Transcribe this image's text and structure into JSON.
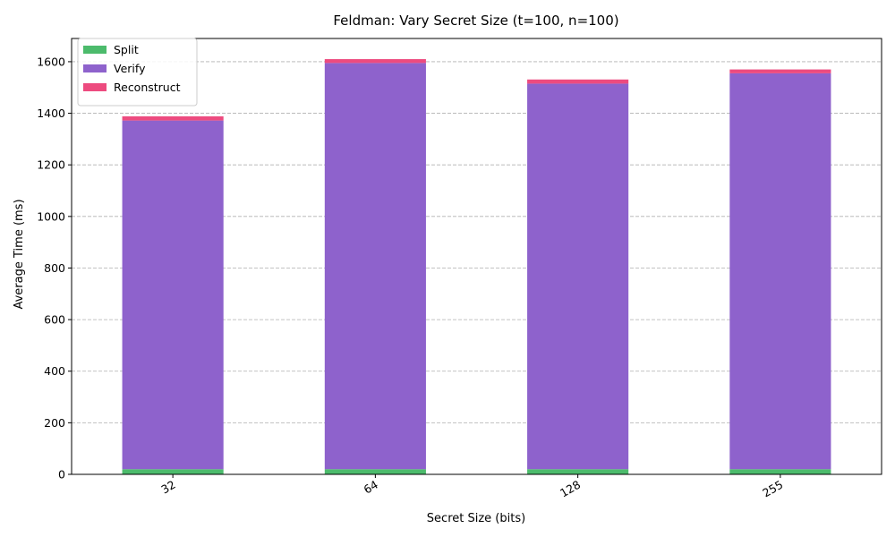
{
  "chart_data": {
    "type": "bar",
    "stacked": true,
    "title": "Feldman: Vary Secret Size (t=100, n=100)",
    "xlabel": "Secret Size (bits)",
    "ylabel": "Average Time (ms)",
    "categories": [
      "32",
      "64",
      "128",
      "255"
    ],
    "ylim": [
      0,
      1690
    ],
    "yticks": [
      0,
      200,
      400,
      600,
      800,
      1000,
      1200,
      1400,
      1600
    ],
    "grid": true,
    "legend_position": "top-left",
    "series": [
      {
        "name": "Split",
        "color": "#4cbb6c",
        "values": [
          20,
          20,
          20,
          20
        ]
      },
      {
        "name": "Verify",
        "color": "#8e62cc",
        "values": [
          1352,
          1575,
          1495,
          1535
        ]
      },
      {
        "name": "Reconstruct",
        "color": "#ed4b7f",
        "values": [
          16,
          15,
          16,
          15
        ]
      }
    ]
  }
}
